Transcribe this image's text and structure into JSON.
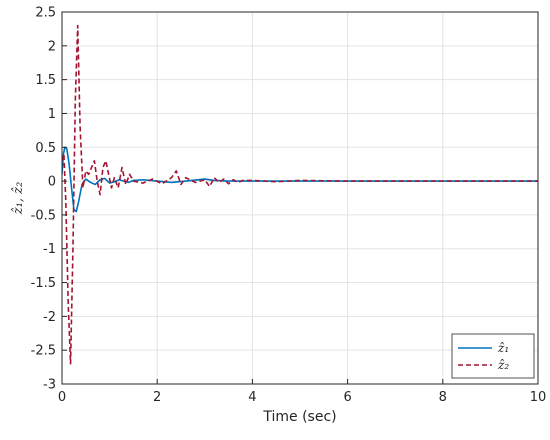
{
  "chart_data": {
    "type": "line",
    "title": "",
    "xlabel": "Time (sec)",
    "ylabel": "ẑ₁, ẑ₂",
    "xlim": [
      0,
      10
    ],
    "ylim": [
      -3,
      2.5
    ],
    "xticks": [
      0,
      2,
      4,
      6,
      8,
      10
    ],
    "xtick_labels": [
      "0",
      "2",
      "4",
      "6",
      "8",
      "10"
    ],
    "yticks": [
      -3,
      -2.5,
      -2,
      -1.5,
      -1,
      -0.5,
      0,
      0.5,
      1,
      1.5,
      2,
      2.5
    ],
    "ytick_labels": [
      "-3",
      "-2.5",
      "-2",
      "-1.5",
      "-1",
      "-0.5",
      "0",
      "0.5",
      "1",
      "1.5",
      "2",
      "2.5"
    ],
    "grid": true,
    "legend": "bottom-right",
    "series": [
      {
        "name": "ẑ₁",
        "color": "#0072bd",
        "style": "solid",
        "x": [
          0,
          0.03,
          0.06,
          0.1,
          0.15,
          0.2,
          0.25,
          0.3,
          0.35,
          0.42,
          0.5,
          0.6,
          0.7,
          0.8,
          0.9,
          1.0,
          1.1,
          1.2,
          1.3,
          1.4,
          1.5,
          1.7,
          2.0,
          2.3,
          2.6,
          3.0,
          3.2,
          3.5,
          4.0,
          5.0,
          6.0,
          7.0,
          8.0,
          9.0,
          10.0
        ],
        "y": [
          0.1,
          0.4,
          0.5,
          0.48,
          0.25,
          -0.1,
          -0.42,
          -0.45,
          -0.3,
          -0.05,
          0.03,
          -0.02,
          -0.05,
          0.02,
          0.04,
          -0.03,
          -0.01,
          0.02,
          0.0,
          -0.02,
          0.01,
          0.02,
          0.0,
          -0.02,
          0.0,
          0.03,
          0.01,
          0.0,
          0.0,
          0.0,
          0.0,
          0.0,
          0.0,
          0.0,
          0.0
        ]
      },
      {
        "name": "ẑ₂",
        "color": "#a2142f",
        "style": "dashed",
        "x": [
          0,
          0.04,
          0.08,
          0.13,
          0.18,
          0.23,
          0.28,
          0.33,
          0.38,
          0.44,
          0.5,
          0.56,
          0.62,
          0.68,
          0.74,
          0.8,
          0.86,
          0.92,
          0.98,
          1.04,
          1.1,
          1.18,
          1.26,
          1.34,
          1.42,
          1.5,
          1.7,
          1.9,
          2.1,
          2.3,
          2.4,
          2.5,
          2.6,
          2.8,
          3.0,
          3.1,
          3.2,
          3.3,
          3.4,
          3.5,
          3.6,
          3.7,
          3.8,
          4.0,
          4.5,
          5.0,
          6.0,
          7.0,
          8.0,
          9.0,
          10.0
        ],
        "y": [
          0.3,
          0.4,
          -0.3,
          -1.8,
          -2.7,
          -1.0,
          1.2,
          2.3,
          0.8,
          -0.1,
          0.15,
          0.1,
          0.2,
          0.3,
          0.0,
          -0.2,
          0.2,
          0.3,
          0.1,
          -0.1,
          0.05,
          -0.1,
          0.2,
          -0.05,
          0.1,
          0.0,
          -0.03,
          0.03,
          -0.04,
          0.05,
          0.15,
          -0.05,
          0.05,
          -0.02,
          0.02,
          -0.08,
          0.05,
          -0.02,
          0.03,
          -0.04,
          0.02,
          -0.02,
          0.01,
          0.01,
          -0.01,
          0.01,
          0.0,
          0.0,
          0.0,
          0.0,
          0.0
        ]
      }
    ]
  }
}
